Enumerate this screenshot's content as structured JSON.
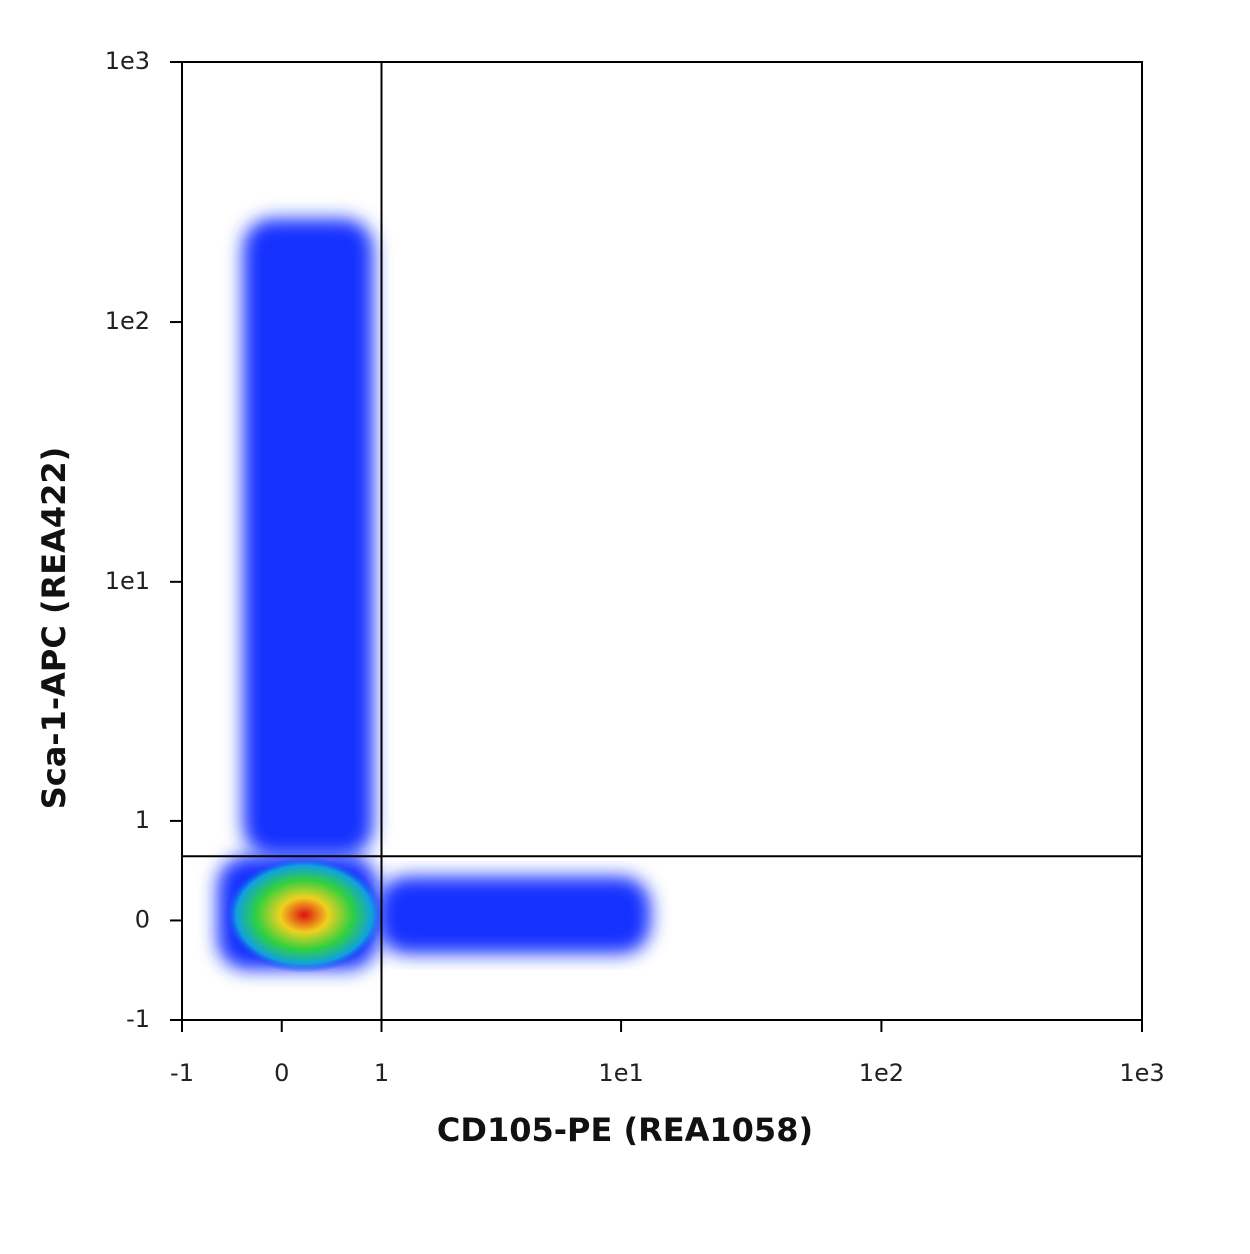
{
  "chart_data": {
    "type": "density",
    "x_label": "CD105-PE (REA1058)",
    "y_label": "Sca-1-APC (REA422)",
    "scale": "asinh",
    "xlim": [
      -1,
      1000
    ],
    "ylim": [
      -1,
      1000
    ],
    "xticks": [
      -1,
      0,
      1,
      {
        "value": 10,
        "label": "1e1"
      },
      {
        "value": 100,
        "label": "1e2"
      },
      {
        "value": 1000,
        "label": "1e3"
      }
    ],
    "yticks": [
      -1,
      0,
      1,
      {
        "value": 10,
        "label": "1e1"
      },
      {
        "value": 100,
        "label": "1e2"
      },
      {
        "value": 1000,
        "label": "1e3"
      }
    ],
    "quadrant": {
      "x": 1,
      "y": 0.6
    },
    "populations": [
      {
        "xlim": [
          -0.6,
          0.95
        ],
        "ylim": [
          -0.45,
          0.6
        ],
        "color": "#1830ff"
      },
      {
        "xlim": [
          -0.35,
          0.9
        ],
        "ylim": [
          0.6,
          250
        ],
        "color": "#1830ff"
      },
      {
        "xlim": [
          0.95,
          13
        ],
        "ylim": [
          -0.3,
          0.4
        ],
        "color": "#1830ff"
      }
    ],
    "peak": {
      "x": 0.2,
      "y": 0.05
    }
  }
}
